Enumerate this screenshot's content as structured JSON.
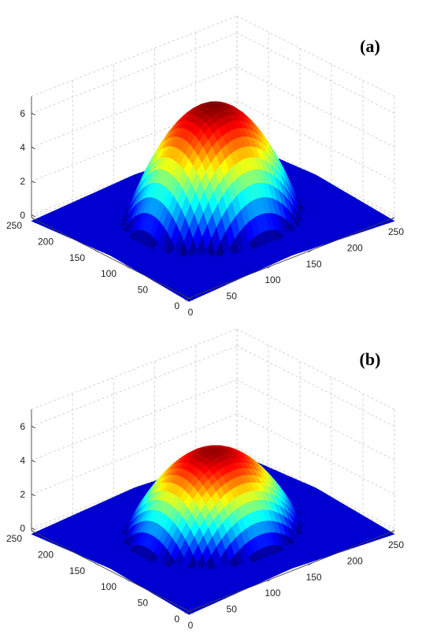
{
  "chart_data": [
    {
      "type": "surface",
      "panel_label": "(a)",
      "x_ticks": [
        "0",
        "50",
        "100",
        "150",
        "200",
        "250"
      ],
      "y_ticks": [
        "0",
        "50",
        "100",
        "150",
        "200",
        "250"
      ],
      "z_ticks": [
        "0",
        "2",
        "4",
        "6"
      ],
      "xlim": [
        0,
        250
      ],
      "ylim": [
        0,
        250
      ],
      "zlim": [
        0,
        7
      ],
      "peak_z": 6.5,
      "colormap": "jet",
      "grid": true
    },
    {
      "type": "surface",
      "panel_label": "(b)",
      "x_ticks": [
        "0",
        "50",
        "100",
        "150",
        "200",
        "250"
      ],
      "y_ticks": [
        "0",
        "50",
        "100",
        "150",
        "200",
        "250"
      ],
      "z_ticks": [
        "0",
        "2",
        "4",
        "6"
      ],
      "xlim": [
        0,
        250
      ],
      "ylim": [
        0,
        250
      ],
      "zlim": [
        0,
        7
      ],
      "peak_z": 4.6,
      "colormap": "jet",
      "grid": true
    }
  ]
}
